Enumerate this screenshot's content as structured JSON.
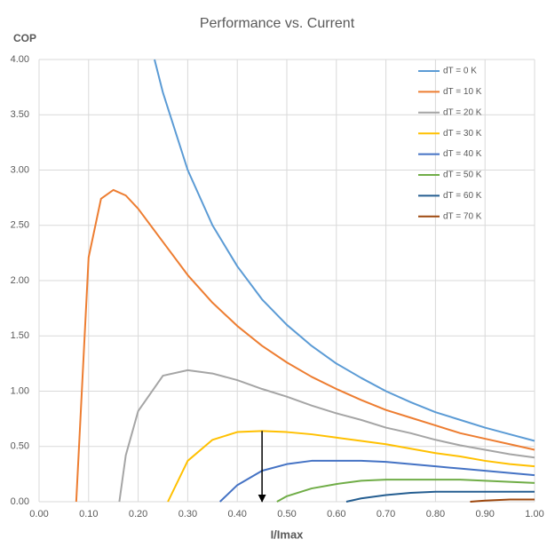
{
  "chart_data": {
    "type": "line",
    "title": "Performance vs. Current",
    "x_label": "I/Imax",
    "y_label": "COP",
    "xlim": [
      0,
      1
    ],
    "ylim": [
      0,
      4
    ],
    "xticks": [
      {
        "value": 0,
        "label": "0.00"
      },
      {
        "value": 0.1,
        "label": "0.10"
      },
      {
        "value": 0.2,
        "label": "0.20"
      },
      {
        "value": 0.3,
        "label": "0.30"
      },
      {
        "value": 0.4,
        "label": "0.40"
      },
      {
        "value": 0.5,
        "label": "0.50"
      },
      {
        "value": 0.6,
        "label": "0.60"
      },
      {
        "value": 0.7,
        "label": "0.70"
      },
      {
        "value": 0.8,
        "label": "0.80"
      },
      {
        "value": 0.9,
        "label": "0.90"
      },
      {
        "value": 1,
        "label": "1.00"
      }
    ],
    "yticks": [
      {
        "value": 0,
        "label": "0.00"
      },
      {
        "value": 0.5,
        "label": "0.50"
      },
      {
        "value": 1,
        "label": "1.00"
      },
      {
        "value": 1.5,
        "label": "1.50"
      },
      {
        "value": 2,
        "label": "2.00"
      },
      {
        "value": 2.5,
        "label": "2.50"
      },
      {
        "value": 3,
        "label": "3.00"
      },
      {
        "value": 3.5,
        "label": "3.50"
      },
      {
        "value": 4,
        "label": "4.00"
      }
    ],
    "grid": true,
    "legend": "top-right",
    "series": [
      {
        "name": "dT = 0 K",
        "color": "#5b9bd5",
        "x": [
          0.233,
          0.25,
          0.3,
          0.35,
          0.4,
          0.45,
          0.5,
          0.55,
          0.6,
          0.65,
          0.7,
          0.75,
          0.8,
          0.85,
          0.9,
          0.95,
          1
        ],
        "values": [
          4.0,
          3.7,
          3.0,
          2.5,
          2.13,
          1.83,
          1.6,
          1.41,
          1.25,
          1.12,
          1.0,
          0.9,
          0.81,
          0.74,
          0.67,
          0.61,
          0.55
        ]
      },
      {
        "name": "dT = 10 K",
        "color": "#ed7d31",
        "x": [
          0.075,
          0.1,
          0.125,
          0.15,
          0.175,
          0.2,
          0.25,
          0.3,
          0.35,
          0.4,
          0.45,
          0.5,
          0.55,
          0.6,
          0.65,
          0.7,
          0.75,
          0.8,
          0.85,
          0.9,
          0.95,
          1
        ],
        "values": [
          0,
          2.21,
          2.74,
          2.82,
          2.77,
          2.65,
          2.35,
          2.05,
          1.8,
          1.59,
          1.41,
          1.26,
          1.13,
          1.02,
          0.92,
          0.83,
          0.76,
          0.69,
          0.62,
          0.57,
          0.52,
          0.47
        ]
      },
      {
        "name": "dT = 20 K",
        "color": "#a5a5a5",
        "x": [
          0.162,
          0.175,
          0.2,
          0.25,
          0.3,
          0.35,
          0.4,
          0.45,
          0.5,
          0.55,
          0.6,
          0.65,
          0.7,
          0.75,
          0.8,
          0.85,
          0.9,
          0.95,
          1
        ],
        "values": [
          0,
          0.42,
          0.82,
          1.14,
          1.19,
          1.16,
          1.1,
          1.02,
          0.95,
          0.87,
          0.8,
          0.74,
          0.67,
          0.62,
          0.56,
          0.51,
          0.47,
          0.43,
          0.4
        ]
      },
      {
        "name": "dT = 30 K",
        "color": "#ffc000",
        "x": [
          0.26,
          0.3,
          0.35,
          0.4,
          0.45,
          0.5,
          0.55,
          0.6,
          0.65,
          0.7,
          0.75,
          0.8,
          0.85,
          0.9,
          0.95,
          1
        ],
        "values": [
          0,
          0.37,
          0.56,
          0.63,
          0.64,
          0.63,
          0.61,
          0.58,
          0.55,
          0.52,
          0.48,
          0.44,
          0.41,
          0.37,
          0.34,
          0.32
        ]
      },
      {
        "name": "dT = 40 K",
        "color": "#4472c4",
        "x": [
          0.365,
          0.4,
          0.45,
          0.5,
          0.55,
          0.6,
          0.65,
          0.7,
          0.75,
          0.8,
          0.85,
          0.9,
          0.95,
          1
        ],
        "values": [
          0,
          0.15,
          0.28,
          0.34,
          0.37,
          0.37,
          0.37,
          0.36,
          0.34,
          0.32,
          0.3,
          0.28,
          0.26,
          0.24
        ]
      },
      {
        "name": "dT = 50 K",
        "color": "#70ad47",
        "x": [
          0.48,
          0.5,
          0.55,
          0.6,
          0.65,
          0.7,
          0.75,
          0.8,
          0.85,
          0.9,
          0.95,
          1
        ],
        "values": [
          0,
          0.05,
          0.12,
          0.16,
          0.19,
          0.2,
          0.2,
          0.2,
          0.2,
          0.19,
          0.18,
          0.17
        ]
      },
      {
        "name": "dT = 60 K",
        "color": "#255e91",
        "x": [
          0.62,
          0.65,
          0.7,
          0.75,
          0.8,
          0.85,
          0.9,
          0.95,
          1
        ],
        "values": [
          0,
          0.03,
          0.06,
          0.08,
          0.09,
          0.09,
          0.09,
          0.09,
          0.09
        ]
      },
      {
        "name": "dT = 70 K",
        "color": "#9e480e",
        "x": [
          0.87,
          0.9,
          0.95,
          1
        ],
        "values": [
          0,
          0.01,
          0.02,
          0.02
        ]
      }
    ],
    "arrow": {
      "x": 0.45,
      "y_start": 0.64,
      "y_end": 0
    }
  }
}
